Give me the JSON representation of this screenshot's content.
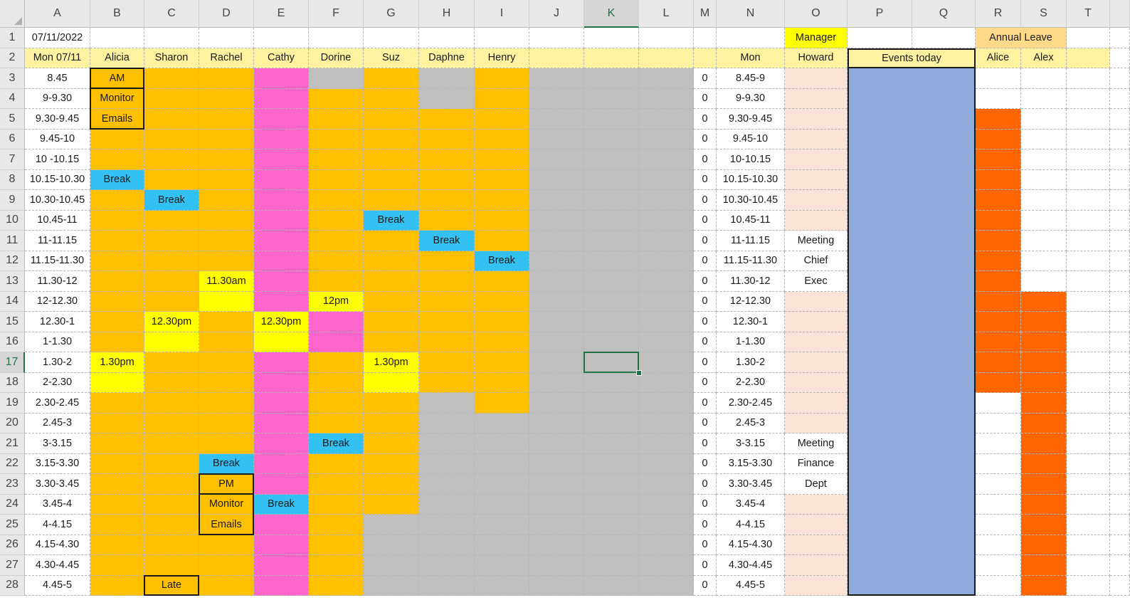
{
  "colors": {
    "white": "#ffffff",
    "orange": "#ffc000",
    "pink": "#ff66cc",
    "gray": "#bfbfbf",
    "cyan": "#33c1f2",
    "yellow": "#ffff00",
    "lightyellow": "#fff2a0",
    "peach": "#fbe3d8",
    "blue": "#8eaadb",
    "darkorange": "#ff6600",
    "tan": "#ffd98a",
    "selected_header": "#217346"
  },
  "sheet": {
    "columns": [
      "A",
      "B",
      "C",
      "D",
      "E",
      "F",
      "G",
      "H",
      "I",
      "J",
      "K",
      "L",
      "M",
      "N",
      "O",
      "P",
      "Q",
      "R",
      "S",
      "T"
    ],
    "selected_column": "K",
    "selected_row": 17,
    "rows": [
      {
        "num": 1,
        "cells": {
          "A": {
            "t": "07/11/2022"
          },
          "O": {
            "t": "Manager",
            "bg": "yellow"
          }
        }
      },
      {
        "num": 2,
        "cells": {
          "A": {
            "t": "Mon 07/11"
          },
          "B": {
            "t": "Alicia"
          },
          "C": {
            "t": "Sharon"
          },
          "D": {
            "t": "Rachel"
          },
          "E": {
            "t": "Cathy"
          },
          "F": {
            "t": "Dorine"
          },
          "G": {
            "t": "Suz"
          },
          "H": {
            "t": "Daphne"
          },
          "I": {
            "t": "Henry"
          },
          "N": {
            "t": "Mon"
          },
          "O": {
            "t": "Howard"
          },
          "R": {
            "t": "Alice"
          },
          "S": {
            "t": "Alex"
          }
        }
      },
      {
        "num": 3,
        "cells": {
          "A": {
            "t": "8.45"
          },
          "B": {
            "t": "AM"
          },
          "M": {
            "t": "0"
          },
          "N": {
            "t": "8.45-9"
          }
        }
      },
      {
        "num": 4,
        "cells": {
          "A": {
            "t": "9-9.30"
          },
          "B": {
            "t": "Monitor"
          },
          "M": {
            "t": "0"
          },
          "N": {
            "t": "9-9.30"
          }
        }
      },
      {
        "num": 5,
        "cells": {
          "A": {
            "t": "9.30-9.45"
          },
          "B": {
            "t": "Emails"
          },
          "M": {
            "t": "0"
          },
          "N": {
            "t": "9.30-9.45"
          }
        }
      },
      {
        "num": 6,
        "cells": {
          "A": {
            "t": "9.45-10"
          },
          "M": {
            "t": "0"
          },
          "N": {
            "t": "9.45-10"
          }
        }
      },
      {
        "num": 7,
        "cells": {
          "A": {
            "t": "10 -10.15"
          },
          "M": {
            "t": "0"
          },
          "N": {
            "t": "10-10.15"
          }
        }
      },
      {
        "num": 8,
        "cells": {
          "A": {
            "t": "10.15-10.30"
          },
          "B": {
            "t": "Break",
            "bg": "cyan"
          },
          "M": {
            "t": "0"
          },
          "N": {
            "t": "10.15-10.30"
          }
        }
      },
      {
        "num": 9,
        "cells": {
          "A": {
            "t": "10.30-10.45"
          },
          "C": {
            "t": "Break",
            "bg": "cyan"
          },
          "M": {
            "t": "0"
          },
          "N": {
            "t": "10.30-10.45"
          }
        }
      },
      {
        "num": 10,
        "cells": {
          "A": {
            "t": "10.45-11"
          },
          "G": {
            "t": "Break",
            "bg": "cyan"
          },
          "M": {
            "t": "0"
          },
          "N": {
            "t": "10.45-11"
          }
        }
      },
      {
        "num": 11,
        "cells": {
          "A": {
            "t": "11-11.15"
          },
          "H": {
            "t": "Break",
            "bg": "cyan"
          },
          "M": {
            "t": "0"
          },
          "N": {
            "t": "11-11.15"
          },
          "O": {
            "t": "Meeting",
            "bg": "white"
          }
        }
      },
      {
        "num": 12,
        "cells": {
          "A": {
            "t": "11.15-11.30"
          },
          "I": {
            "t": "Break",
            "bg": "cyan"
          },
          "M": {
            "t": "0"
          },
          "N": {
            "t": "11.15-11.30"
          },
          "O": {
            "t": "Chief",
            "bg": "white"
          }
        }
      },
      {
        "num": 13,
        "cells": {
          "A": {
            "t": "11.30-12"
          },
          "D": {
            "t": "11.30am",
            "bg": "yellow"
          },
          "M": {
            "t": "0"
          },
          "N": {
            "t": "11.30-12"
          },
          "O": {
            "t": "Exec",
            "bg": "white"
          }
        }
      },
      {
        "num": 14,
        "cells": {
          "A": {
            "t": "12-12.30"
          },
          "D": {
            "bg": "yellow"
          },
          "F": {
            "t": "12pm",
            "bg": "yellow"
          },
          "M": {
            "t": "0"
          },
          "N": {
            "t": "12-12.30"
          }
        }
      },
      {
        "num": 15,
        "cells": {
          "A": {
            "t": "12.30-1"
          },
          "C": {
            "t": "12.30pm",
            "bg": "yellow"
          },
          "E": {
            "t": "12.30pm",
            "bg": "yellow"
          },
          "F": {
            "bg": "pink"
          },
          "M": {
            "t": "0"
          },
          "N": {
            "t": "12.30-1"
          }
        }
      },
      {
        "num": 16,
        "cells": {
          "A": {
            "t": "1-1.30"
          },
          "C": {
            "bg": "yellow"
          },
          "E": {
            "bg": "yellow"
          },
          "F": {
            "bg": "pink"
          },
          "M": {
            "t": "0"
          },
          "N": {
            "t": "1-1.30"
          }
        }
      },
      {
        "num": 17,
        "cells": {
          "A": {
            "t": "1.30-2"
          },
          "B": {
            "t": "1.30pm",
            "bg": "yellow"
          },
          "G": {
            "t": "1.30pm",
            "bg": "yellow"
          },
          "M": {
            "t": "0"
          },
          "N": {
            "t": "1.30-2"
          }
        }
      },
      {
        "num": 18,
        "cells": {
          "A": {
            "t": "2-2.30"
          },
          "B": {
            "bg": "yellow"
          },
          "G": {
            "bg": "yellow"
          },
          "M": {
            "t": "0"
          },
          "N": {
            "t": "2-2.30"
          }
        }
      },
      {
        "num": 19,
        "cells": {
          "A": {
            "t": "2.30-2.45"
          },
          "M": {
            "t": "0"
          },
          "N": {
            "t": "2.30-2.45"
          }
        }
      },
      {
        "num": 20,
        "cells": {
          "A": {
            "t": "2.45-3"
          },
          "M": {
            "t": "0"
          },
          "N": {
            "t": "2.45-3"
          }
        }
      },
      {
        "num": 21,
        "cells": {
          "A": {
            "t": "3-3.15"
          },
          "F": {
            "t": "Break",
            "bg": "cyan"
          },
          "M": {
            "t": "0"
          },
          "N": {
            "t": "3-3.15"
          },
          "O": {
            "t": "Meeting",
            "bg": "white"
          }
        }
      },
      {
        "num": 22,
        "cells": {
          "A": {
            "t": "3.15-3.30"
          },
          "D": {
            "t": "Break",
            "bg": "cyan"
          },
          "M": {
            "t": "0"
          },
          "N": {
            "t": "3.15-3.30"
          },
          "O": {
            "t": "Finance",
            "bg": "white"
          }
        }
      },
      {
        "num": 23,
        "cells": {
          "A": {
            "t": "3.30-3.45"
          },
          "D": {
            "t": "PM"
          },
          "M": {
            "t": "0"
          },
          "N": {
            "t": "3.30-3.45"
          },
          "O": {
            "t": "Dept",
            "bg": "white"
          }
        }
      },
      {
        "num": 24,
        "cells": {
          "A": {
            "t": "3.45-4"
          },
          "D": {
            "t": "Monitor"
          },
          "E": {
            "t": "Break",
            "bg": "cyan"
          },
          "M": {
            "t": "0"
          },
          "N": {
            "t": "3.45-4"
          }
        }
      },
      {
        "num": 25,
        "cells": {
          "A": {
            "t": "4-4.15"
          },
          "D": {
            "t": "Emails"
          },
          "M": {
            "t": "0"
          },
          "N": {
            "t": "4-4.15"
          }
        }
      },
      {
        "num": 26,
        "cells": {
          "A": {
            "t": "4.15-4.30"
          },
          "M": {
            "t": "0"
          },
          "N": {
            "t": "4.15-4.30"
          }
        }
      },
      {
        "num": 27,
        "cells": {
          "A": {
            "t": "4.30-4.45"
          },
          "M": {
            "t": "0"
          },
          "N": {
            "t": "4.30-4.45"
          }
        }
      },
      {
        "num": 28,
        "cells": {
          "A": {
            "t": "4.45-5"
          },
          "C": {
            "t": "Late"
          },
          "M": {
            "t": "0"
          },
          "N": {
            "t": "4.45-5"
          }
        }
      }
    ],
    "merged": [
      {
        "name": "events-today-header",
        "t": "Events today",
        "bg": "lightyellow"
      },
      {
        "name": "events-today-panel",
        "t": "",
        "bg": "blue"
      },
      {
        "name": "annual-leave-header",
        "t": "Annual Leave",
        "bg": "tan"
      }
    ]
  }
}
